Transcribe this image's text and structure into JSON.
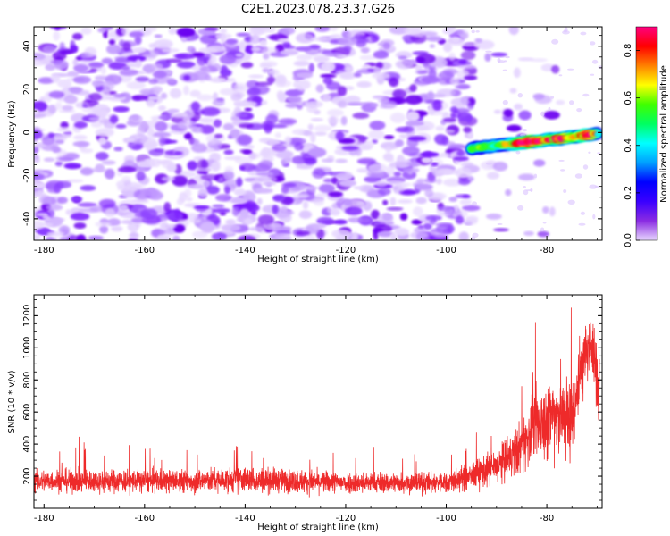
{
  "title": "C2E1.2023.078.23.37.G26",
  "chart_data": [
    {
      "type": "heatmap",
      "xlabel": "Height of straight line (km)",
      "ylabel": "Frequency (Hz)",
      "xlim": [
        -182,
        -69
      ],
      "ylim": [
        -50,
        49
      ],
      "x_ticks": [
        -180,
        -160,
        -140,
        -120,
        -100,
        -80
      ],
      "y_ticks": [
        -40,
        -20,
        0,
        20,
        40
      ],
      "colorbar": {
        "label": "Normalized spectral amplitude",
        "range": [
          0,
          0.9
        ],
        "ticks": [
          0.0,
          0.2,
          0.4,
          0.6,
          0.8
        ],
        "colormap": [
          "#e8d8ff",
          "#8a2be2",
          "#3a00ff",
          "#0000ff",
          "#00a0ff",
          "#00ffff",
          "#00ff60",
          "#40ff00",
          "#ffff00",
          "#ff8000",
          "#ff0000",
          "#ff0080"
        ]
      },
      "noise_region_x": [
        -182,
        -95
      ],
      "signal_track": [
        {
          "x": -95,
          "freq": -7.5,
          "amp": 0.45
        },
        {
          "x": -92,
          "freq": -6.5,
          "amp": 0.5
        },
        {
          "x": -88,
          "freq": -5.5,
          "amp": 0.55
        },
        {
          "x": -84,
          "freq": -4.5,
          "amp": 0.85
        },
        {
          "x": -80,
          "freq": -3.5,
          "amp": 0.7
        },
        {
          "x": -77,
          "freq": -2.8,
          "amp": 0.75
        },
        {
          "x": -74,
          "freq": -1.8,
          "amp": 0.6
        },
        {
          "x": -72,
          "freq": -1.2,
          "amp": 0.9
        },
        {
          "x": -70,
          "freq": -0.5,
          "amp": 0.5
        }
      ]
    },
    {
      "type": "line",
      "xlabel": "Height of straight line (km)",
      "ylabel": "SNR (10 * v/v)",
      "xlim": [
        -182,
        -69
      ],
      "ylim": [
        0,
        1330
      ],
      "x_ticks": [
        -180,
        -160,
        -140,
        -120,
        -100,
        -80
      ],
      "y_ticks": [
        200,
        400,
        600,
        800,
        1000,
        1200
      ],
      "series": [
        {
          "color": "#ee2a2a",
          "envelope": [
            {
              "x": -182,
              "mean": 170,
              "spread": 110
            },
            {
              "x": -150,
              "mean": 170,
              "spread": 110
            },
            {
              "x": -140,
              "mean": 180,
              "spread": 120
            },
            {
              "x": -120,
              "mean": 160,
              "spread": 100
            },
            {
              "x": -100,
              "mean": 160,
              "spread": 100
            },
            {
              "x": -95,
              "mean": 200,
              "spread": 130
            },
            {
              "x": -90,
              "mean": 260,
              "spread": 170
            },
            {
              "x": -86,
              "mean": 350,
              "spread": 230
            },
            {
              "x": -82,
              "mean": 520,
              "spread": 330
            },
            {
              "x": -78,
              "mean": 600,
              "spread": 400
            },
            {
              "x": -75,
              "mean": 550,
              "spread": 400
            },
            {
              "x": -73,
              "mean": 900,
              "spread": 350
            },
            {
              "x": -71,
              "mean": 1050,
              "spread": 250
            },
            {
              "x": -69.5,
              "mean": 700,
              "spread": 400
            }
          ]
        }
      ]
    }
  ]
}
